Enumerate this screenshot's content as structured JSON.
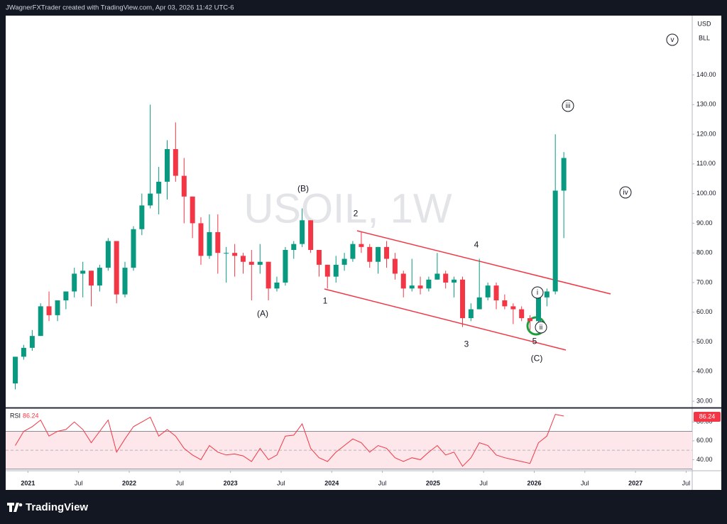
{
  "header": {
    "text": "JWagnerFXTrader created with TradingView.com, Apr 03, 2026 11:42 UTC-6"
  },
  "footer": {
    "brand": "TradingView"
  },
  "chart_data": [
    {
      "type": "candlestick",
      "title": "USOIL, 1W",
      "unit_labels": [
        "USD",
        "BLL"
      ],
      "up_color": "#089981",
      "down_color": "#f23645",
      "grid": false,
      "x": [
        2020.875,
        2020.958,
        2021.042,
        2021.125,
        2021.208,
        2021.292,
        2021.375,
        2021.458,
        2021.542,
        2021.625,
        2021.708,
        2021.792,
        2021.875,
        2021.958,
        2022.042,
        2022.125,
        2022.208,
        2022.292,
        2022.375,
        2022.458,
        2022.542,
        2022.625,
        2022.708,
        2022.792,
        2022.875,
        2022.958,
        2023.042,
        2023.125,
        2023.208,
        2023.292,
        2023.375,
        2023.458,
        2023.542,
        2023.625,
        2023.708,
        2023.792,
        2023.875,
        2023.958,
        2024.042,
        2024.125,
        2024.208,
        2024.292,
        2024.375,
        2024.458,
        2024.542,
        2024.625,
        2024.708,
        2024.792,
        2024.875,
        2024.958,
        2025.042,
        2025.125,
        2025.208,
        2025.292,
        2025.375,
        2025.458,
        2025.542,
        2025.625,
        2025.708,
        2025.792,
        2025.875,
        2025.958,
        2026.042,
        2026.125,
        2026.208,
        2026.292
      ],
      "open": [
        36,
        45,
        48,
        52,
        62,
        59,
        64,
        67,
        73,
        74,
        69,
        75,
        84,
        66,
        75,
        88,
        96,
        100,
        104,
        115,
        106,
        99,
        90,
        79,
        87,
        80,
        80,
        79,
        77,
        76,
        77,
        68,
        70,
        81,
        83,
        91,
        81,
        76,
        72,
        76,
        78,
        83,
        82,
        77,
        82,
        78,
        73,
        68,
        69,
        68,
        71,
        73,
        70,
        71,
        58,
        61,
        65,
        69,
        64,
        62,
        61,
        58,
        57,
        65,
        67,
        101
      ],
      "high": [
        45,
        49,
        54,
        63,
        67,
        64,
        67,
        75,
        77,
        74,
        76,
        85,
        84,
        77,
        89,
        100,
        130,
        109,
        118,
        124,
        112,
        99,
        92,
        93,
        93,
        82,
        83,
        80,
        81,
        83,
        77,
        72,
        82,
        84,
        95,
        91,
        81,
        76,
        79,
        80,
        84,
        87,
        83,
        82,
        84,
        80,
        74,
        78,
        72,
        72,
        80,
        74,
        72,
        72,
        63,
        78,
        70,
        70,
        66,
        63,
        62,
        59,
        66,
        68,
        120,
        114
      ],
      "low": [
        34,
        44,
        47,
        52,
        57,
        57,
        61,
        65,
        65,
        62,
        67,
        74,
        63,
        65,
        74,
        86,
        95,
        93,
        98,
        104,
        90,
        85,
        76,
        78,
        73,
        70,
        72,
        73,
        64,
        73,
        64,
        67,
        69,
        78,
        82,
        80,
        72,
        68,
        70,
        74,
        77,
        80,
        75,
        73,
        75,
        71,
        65,
        67,
        66,
        67,
        71,
        68,
        65,
        55,
        57,
        61,
        64,
        61,
        61,
        56,
        57,
        54,
        56,
        62,
        66,
        85
      ],
      "close": [
        45,
        48,
        52,
        62,
        59,
        64,
        67,
        73,
        74,
        69,
        75,
        84,
        66,
        75,
        88,
        96,
        100,
        104,
        115,
        106,
        99,
        90,
        79,
        87,
        80,
        80,
        79,
        77,
        76,
        77,
        68,
        70,
        81,
        83,
        91,
        81,
        76,
        72,
        76,
        78,
        83,
        82,
        77,
        82,
        78,
        73,
        68,
        69,
        68,
        71,
        73,
        70,
        71,
        58,
        61,
        65,
        69,
        64,
        62,
        61,
        58,
        57,
        65,
        67,
        101,
        112
      ],
      "xlim": [
        2020.78,
        2027.56
      ],
      "xticks": [
        2021,
        {
          "value": 2021.5,
          "label": "Jul"
        },
        2022,
        {
          "value": 2022.5,
          "label": "Jul"
        },
        2023,
        {
          "value": 2023.5,
          "label": "Jul"
        },
        2024,
        {
          "value": 2024.5,
          "label": "Jul"
        },
        2025,
        {
          "value": 2025.5,
          "label": "Jul"
        },
        2026,
        {
          "value": 2026.5,
          "label": "Jul"
        },
        2027,
        {
          "value": 2027.5,
          "label": "Jul"
        }
      ],
      "ylim": [
        28.1,
        160
      ],
      "yticks": [
        {
          "value": 30,
          "label": "30.00"
        },
        {
          "value": 40,
          "label": "40.00"
        },
        {
          "value": 50,
          "label": "50.00"
        },
        {
          "value": 60,
          "label": "60.00"
        },
        {
          "value": 70,
          "label": "70.00"
        },
        {
          "value": 80,
          "label": "80.00"
        },
        {
          "value": 90,
          "label": "90.00"
        },
        {
          "value": 100,
          "label": "100.00"
        },
        {
          "value": 110,
          "label": "110.00"
        },
        {
          "value": 120,
          "label": "120.00"
        },
        {
          "value": 130,
          "label": "130.00"
        },
        {
          "value": 140,
          "label": "140.00"
        }
      ],
      "annotations": [
        {
          "text": "(A)",
          "circled": false
        },
        {
          "text": "(B)",
          "circled": false
        },
        {
          "text": "1",
          "circled": false
        },
        {
          "text": "2",
          "circled": false
        },
        {
          "text": "3",
          "circled": false
        },
        {
          "text": "4",
          "circled": false
        },
        {
          "text": "5",
          "circled": false
        },
        {
          "text": "(C)",
          "circled": false
        },
        {
          "text": "i",
          "circled": true
        },
        {
          "text": "ii",
          "circled": true
        },
        {
          "text": "iii",
          "circled": true
        },
        {
          "text": "iv",
          "circled": true
        },
        {
          "text": "v",
          "circled": true
        }
      ]
    },
    {
      "type": "line",
      "title": "RSI",
      "color": "#f23645",
      "band": [
        30,
        70
      ],
      "midline": 50,
      "x": [
        2020.875,
        2020.958,
        2021.042,
        2021.125,
        2021.208,
        2021.292,
        2021.375,
        2021.458,
        2021.542,
        2021.625,
        2021.708,
        2021.792,
        2021.875,
        2021.958,
        2022.042,
        2022.125,
        2022.208,
        2022.292,
        2022.375,
        2022.458,
        2022.542,
        2022.625,
        2022.708,
        2022.792,
        2022.875,
        2022.958,
        2023.042,
        2023.125,
        2023.208,
        2023.292,
        2023.375,
        2023.458,
        2023.542,
        2023.625,
        2023.708,
        2023.792,
        2023.875,
        2023.958,
        2024.042,
        2024.125,
        2024.208,
        2024.292,
        2024.375,
        2024.458,
        2024.542,
        2024.625,
        2024.708,
        2024.792,
        2024.875,
        2024.958,
        2025.042,
        2025.125,
        2025.208,
        2025.292,
        2025.375,
        2025.458,
        2025.542,
        2025.625,
        2025.708,
        2025.792,
        2025.875,
        2025.958,
        2026.042,
        2026.125,
        2026.208,
        2026.292
      ],
      "values": [
        55,
        70,
        75,
        82,
        65,
        70,
        72,
        80,
        72,
        58,
        70,
        82,
        48,
        62,
        75,
        80,
        85,
        65,
        72,
        65,
        52,
        45,
        40,
        55,
        48,
        45,
        46,
        44,
        38,
        52,
        40,
        45,
        65,
        66,
        78,
        52,
        42,
        38,
        48,
        55,
        62,
        58,
        48,
        55,
        52,
        42,
        38,
        42,
        40,
        48,
        55,
        45,
        48,
        33,
        42,
        58,
        55,
        45,
        42,
        40,
        38,
        36,
        58,
        65,
        88,
        86.24
      ],
      "ylim": [
        29,
        93
      ],
      "yticks": [
        {
          "value": 40,
          "label": "40.00"
        },
        {
          "value": 60,
          "label": "60.00"
        },
        {
          "value": 80,
          "label": "80.00"
        }
      ]
    }
  ]
}
